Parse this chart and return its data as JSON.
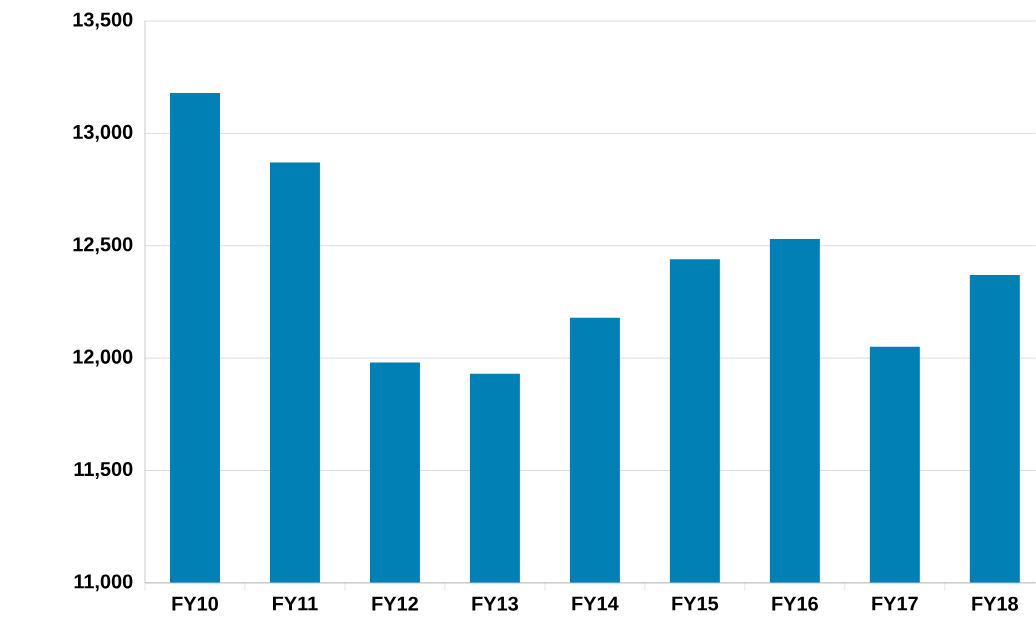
{
  "chart_data": {
    "type": "bar",
    "categories": [
      "FY10",
      "FY11",
      "FY12",
      "FY13",
      "FY14",
      "FY15",
      "FY16",
      "FY17",
      "FY18"
    ],
    "values": [
      13180,
      12870,
      11980,
      11930,
      12180,
      12440,
      12530,
      12050,
      12370
    ],
    "color": "#0080b4",
    "ylim": [
      11000,
      13500
    ],
    "yticks": [
      {
        "value": 11000,
        "label": "11,000"
      },
      {
        "value": 11500,
        "label": "11,500"
      },
      {
        "value": 12000,
        "label": "12,000"
      },
      {
        "value": 12500,
        "label": "12,500"
      },
      {
        "value": 13000,
        "label": "13,000"
      },
      {
        "value": 13500,
        "label": "13,500"
      }
    ],
    "grid": "y"
  }
}
